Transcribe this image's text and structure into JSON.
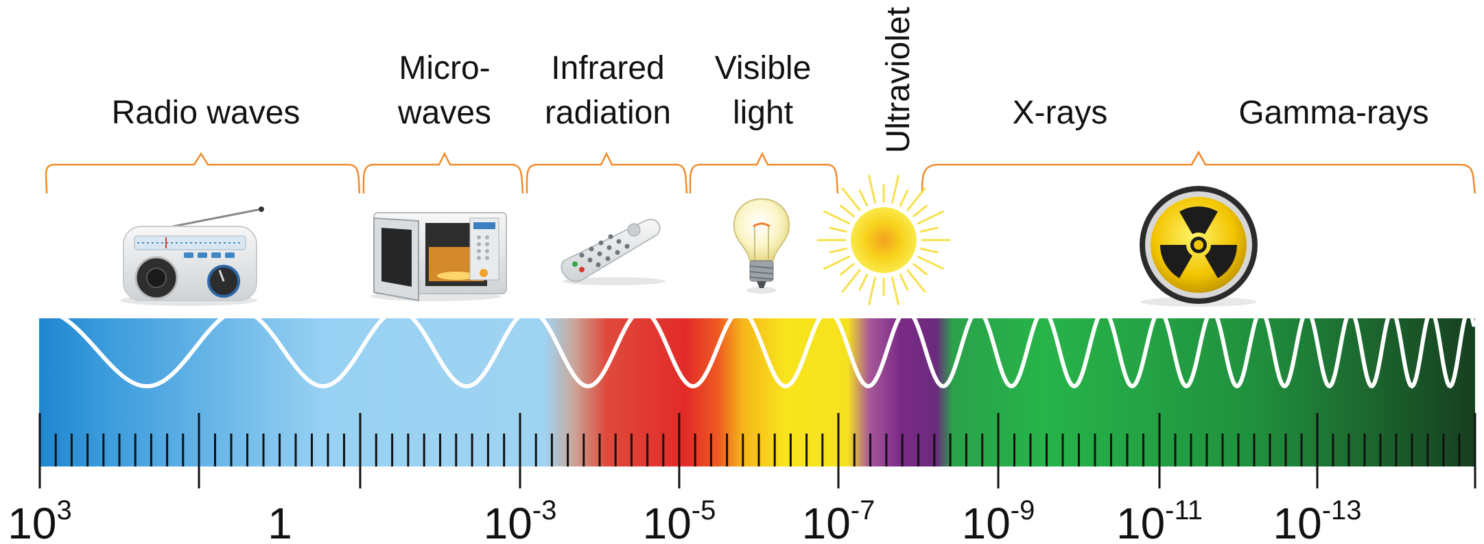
{
  "bands": [
    {
      "id": "radio",
      "lines": [
        "Radio waves"
      ],
      "icon": "radio-icon"
    },
    {
      "id": "microwaves",
      "lines": [
        "Micro-",
        "waves"
      ],
      "icon": "microwave-oven-icon"
    },
    {
      "id": "infrared",
      "lines": [
        "Infrared",
        "radiation"
      ],
      "icon": "remote-control-icon"
    },
    {
      "id": "visible",
      "lines": [
        "Visible",
        "light"
      ],
      "icon": "light-bulb-icon"
    },
    {
      "id": "ultraviolet",
      "lines": [
        "Ultraviolet"
      ],
      "icon": "sun-icon"
    },
    {
      "id": "xrays",
      "lines": [
        "X-rays"
      ],
      "icon": "radiation-symbol-icon"
    },
    {
      "id": "gamma",
      "lines": [
        "Gamma-rays"
      ]
    }
  ],
  "scale": {
    "labels": [
      {
        "base": "10",
        "exp": "3"
      },
      {
        "base": "1",
        "exp": ""
      },
      {
        "base": "10",
        "exp": "-3"
      },
      {
        "base": "10",
        "exp": "-5"
      },
      {
        "base": "10",
        "exp": "-7"
      },
      {
        "base": "10",
        "exp": "-9"
      },
      {
        "base": "10",
        "exp": "-11"
      },
      {
        "base": "10",
        "exp": "-13"
      }
    ]
  },
  "colors": {
    "radio": "#2a8ed4",
    "radio_light": "#9fd3f2",
    "infrared": "#e0282a",
    "visible": "#f7e21a",
    "ultraviolet": "#7b2c86",
    "xray": "#27b34a",
    "gamma": "#1d4a25",
    "bracket": "#f08a2a",
    "wave": "#ffffff"
  }
}
